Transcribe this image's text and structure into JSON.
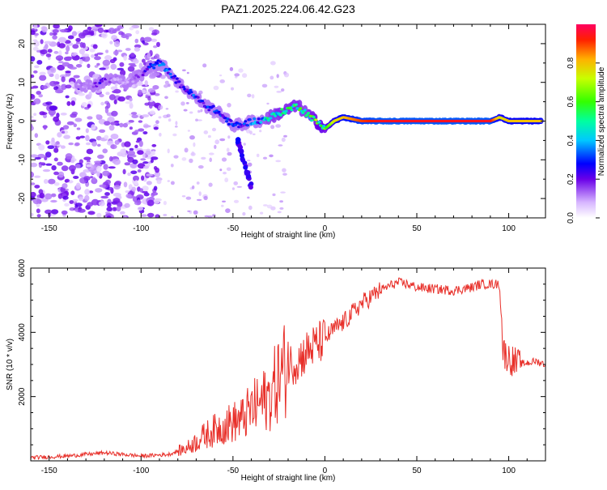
{
  "title": "PAZ1.2025.224.06.42.G23",
  "colors": {
    "snr_line": "#e8302a",
    "spectrum_trace": "#6a00e8",
    "axis": "#000000"
  },
  "colorbar": {
    "label": "Normalized spectral amplitude",
    "ticks": [
      "0.0",
      "0.2",
      "0.4",
      "0.6",
      "0.8"
    ],
    "range": [
      0,
      1
    ]
  },
  "chart_data": [
    {
      "type": "heatmap",
      "xlabel": "Height of straight line (km)",
      "ylabel": "Frequency (Hz)",
      "xlim": [
        -160,
        120
      ],
      "ylim": [
        -25,
        25
      ],
      "xticks": [
        "-150",
        "-100",
        "-50",
        "0",
        "50",
        "100"
      ],
      "yticks": [
        "20",
        "10",
        "0",
        "-10",
        "-20"
      ],
      "ridge": {
        "x": [
          -135,
          -128,
          -122,
          -115,
          -108,
          -100,
          -95,
          -90,
          -85,
          -80,
          -75,
          -70,
          -65,
          -60,
          -55,
          -50,
          -45,
          -40,
          -35,
          -30,
          -25,
          -20,
          -15,
          -10,
          -5,
          -2,
          0,
          5,
          10,
          20,
          30,
          40,
          50,
          60,
          70,
          80,
          90,
          95,
          100,
          105,
          110,
          118
        ],
        "y": [
          10,
          9,
          10,
          11,
          10,
          12,
          14,
          15,
          13,
          10,
          8,
          6,
          4,
          3,
          1,
          -1,
          -1,
          0,
          0,
          1,
          2,
          3,
          4,
          2,
          0,
          -1,
          -2,
          0,
          1,
          0,
          0,
          0,
          0,
          0,
          0,
          0,
          0,
          1,
          0,
          0,
          0,
          0
        ],
        "amplitude": [
          0.1,
          0.1,
          0.2,
          0.1,
          0.1,
          0.15,
          0.25,
          0.3,
          0.3,
          0.2,
          0.25,
          0.3,
          0.25,
          0.3,
          0.25,
          0.3,
          0.25,
          0.3,
          0.35,
          0.45,
          0.5,
          0.5,
          0.5,
          0.45,
          0.55,
          0.6,
          0.55,
          0.75,
          0.8,
          0.9,
          0.95,
          0.95,
          0.95,
          0.95,
          0.95,
          0.95,
          0.95,
          0.75,
          0.8,
          0.8,
          0.8,
          0.8
        ]
      },
      "branch": {
        "x": [
          -40,
          -42,
          -44,
          -46,
          -48
        ],
        "y": [
          -17,
          -14,
          -11,
          -8,
          -4
        ]
      }
    },
    {
      "type": "line",
      "xlabel": "Height of straight line (km)",
      "ylabel": "SNR (10 * v/v)",
      "xlim": [
        -160,
        120
      ],
      "ylim": [
        0,
        6000
      ],
      "xticks": [
        "-150",
        "-100",
        "-50",
        "0",
        "50",
        "100"
      ],
      "yticks": [
        "6000",
        "4000",
        "2000"
      ],
      "series": [
        {
          "x": [
            -160,
            -140,
            -120,
            -100,
            -85,
            -75,
            -65,
            -55,
            -50,
            -45,
            -40,
            -35,
            -30,
            -25,
            -20,
            -15,
            -10,
            -5,
            0,
            5,
            10,
            15,
            20,
            25,
            30,
            35,
            40,
            45,
            50,
            60,
            70,
            80,
            85,
            90,
            95,
            97,
            100,
            105,
            110,
            115,
            120
          ],
          "y": [
            100,
            150,
            250,
            150,
            200,
            400,
            800,
            1100,
            1200,
            1300,
            1600,
            1800,
            2000,
            2600,
            3000,
            3100,
            3400,
            3600,
            3800,
            4100,
            4300,
            4600,
            4900,
            5100,
            5300,
            5450,
            5550,
            5500,
            5400,
            5350,
            5300,
            5400,
            5500,
            5500,
            5500,
            3400,
            3200,
            3000,
            3050,
            3100,
            3000
          ]
        }
      ]
    }
  ]
}
